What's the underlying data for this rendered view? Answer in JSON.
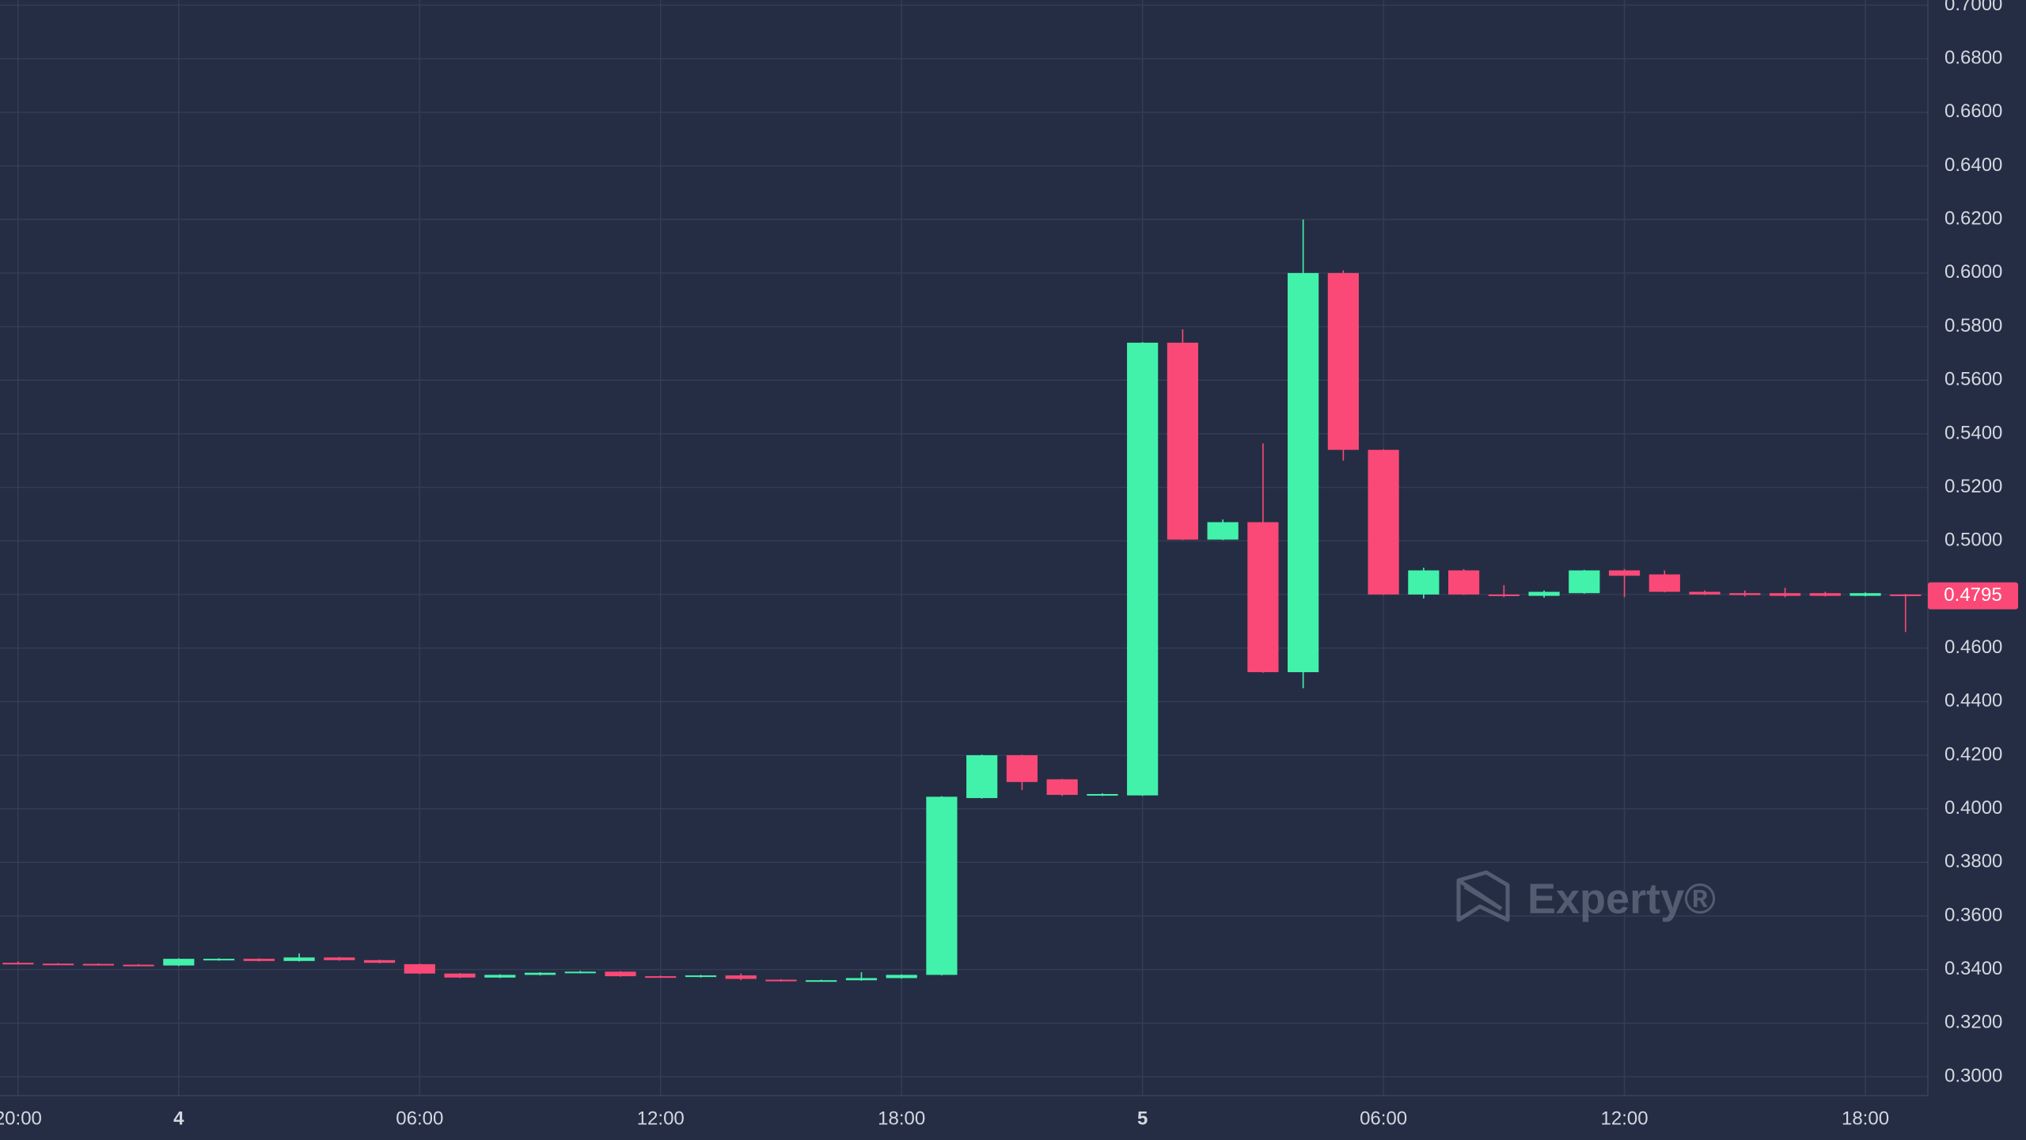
{
  "chart_data": {
    "type": "candlestick",
    "categories": [
      "20:00",
      null,
      null,
      null,
      "4",
      null,
      null,
      null,
      null,
      null,
      "06:00",
      null,
      null,
      null,
      null,
      null,
      "12:00",
      null,
      null,
      null,
      null,
      null,
      "18:00",
      null,
      null,
      null,
      null,
      null,
      "5",
      null,
      null,
      null,
      null,
      null,
      "06:00",
      null,
      null,
      null,
      null,
      null,
      "12:00",
      null,
      null,
      null,
      null,
      null,
      "18:00",
      null
    ],
    "open": [
      0.3425,
      0.3422,
      0.3421,
      0.3418,
      0.3415,
      0.3435,
      0.344,
      0.3432,
      0.3445,
      0.3435,
      0.342,
      0.3385,
      0.337,
      0.338,
      0.3388,
      0.3392,
      0.3375,
      0.3372,
      0.3378,
      0.3362,
      0.3358,
      0.336,
      0.3368,
      0.338,
      0.404,
      0.42,
      0.411,
      0.405,
      0.405,
      0.574,
      0.5005,
      0.507,
      0.451,
      0.6,
      0.534,
      0.48,
      0.489,
      0.48,
      0.4795,
      0.4805,
      0.489,
      0.4875,
      0.481,
      0.4805,
      0.4805,
      0.4805,
      0.4795,
      0.48
    ],
    "high": [
      0.343,
      0.3424,
      0.3423,
      0.342,
      0.3442,
      0.3442,
      0.3442,
      0.346,
      0.3447,
      0.3437,
      0.3422,
      0.3387,
      0.3382,
      0.339,
      0.3395,
      0.3394,
      0.3377,
      0.338,
      0.3385,
      0.3364,
      0.3362,
      0.339,
      0.3382,
      0.4047,
      0.4202,
      0.4202,
      0.4112,
      0.4058,
      0.5742,
      0.579,
      0.508,
      0.5364,
      0.62,
      0.601,
      0.5342,
      0.49,
      0.4895,
      0.4835,
      0.4815,
      0.4892,
      0.4895,
      0.489,
      0.4815,
      0.4815,
      0.4825,
      0.481,
      0.4808,
      0.4802
    ],
    "low": [
      0.342,
      0.3418,
      0.3416,
      0.3413,
      0.3413,
      0.3433,
      0.343,
      0.343,
      0.3433,
      0.3423,
      0.3383,
      0.3368,
      0.3368,
      0.3378,
      0.3386,
      0.3373,
      0.337,
      0.337,
      0.336,
      0.3355,
      0.3356,
      0.3358,
      0.3366,
      0.3378,
      0.4038,
      0.407,
      0.4048,
      0.4048,
      0.4048,
      0.5003,
      0.5003,
      0.4508,
      0.445,
      0.53,
      0.4798,
      0.4785,
      0.4798,
      0.479,
      0.4788,
      0.4803,
      0.479,
      0.4808,
      0.4798,
      0.4793,
      0.479,
      0.4793,
      0.4793,
      0.466
    ],
    "close": [
      0.3422,
      0.342,
      0.3418,
      0.3415,
      0.344,
      0.344,
      0.3432,
      0.3445,
      0.3435,
      0.3425,
      0.3385,
      0.337,
      0.338,
      0.3388,
      0.3392,
      0.3375,
      0.3372,
      0.3378,
      0.3365,
      0.3358,
      0.336,
      0.3368,
      0.338,
      0.4045,
      0.42,
      0.41,
      0.4052,
      0.4055,
      0.574,
      0.5005,
      0.507,
      0.451,
      0.6,
      0.534,
      0.48,
      0.489,
      0.48,
      0.4795,
      0.481,
      0.489,
      0.487,
      0.481,
      0.48,
      0.4798,
      0.4795,
      0.4795,
      0.4805,
      0.4795
    ],
    "up_color": "#42f2ab",
    "down_color": "#fb4977",
    "ylim": [
      0.2964,
      0.7
    ],
    "yticks": [
      {
        "value": 0.3,
        "label": "0.3000"
      },
      {
        "value": 0.32,
        "label": "0.3200"
      },
      {
        "value": 0.34,
        "label": "0.3400"
      },
      {
        "value": 0.36,
        "label": "0.3600"
      },
      {
        "value": 0.38,
        "label": "0.3800"
      },
      {
        "value": 0.4,
        "label": "0.4000"
      },
      {
        "value": 0.42,
        "label": "0.4200"
      },
      {
        "value": 0.44,
        "label": "0.4400"
      },
      {
        "value": 0.46,
        "label": "0.4600"
      },
      {
        "value": 0.48,
        "label": "0.4800"
      },
      {
        "value": 0.5,
        "label": "0.5000"
      },
      {
        "value": 0.52,
        "label": "0.5200"
      },
      {
        "value": 0.54,
        "label": "0.5400"
      },
      {
        "value": 0.56,
        "label": "0.5600"
      },
      {
        "value": 0.58,
        "label": "0.5800"
      },
      {
        "value": 0.6,
        "label": "0.6000"
      },
      {
        "value": 0.62,
        "label": "0.6200"
      },
      {
        "value": 0.64,
        "label": "0.6400"
      },
      {
        "value": 0.66,
        "label": "0.6600"
      },
      {
        "value": 0.68,
        "label": "0.6800"
      },
      {
        "value": 0.7,
        "label": "0.7000"
      }
    ],
    "grid": true,
    "last_price": 0.4795,
    "watermark": "Experty®"
  }
}
